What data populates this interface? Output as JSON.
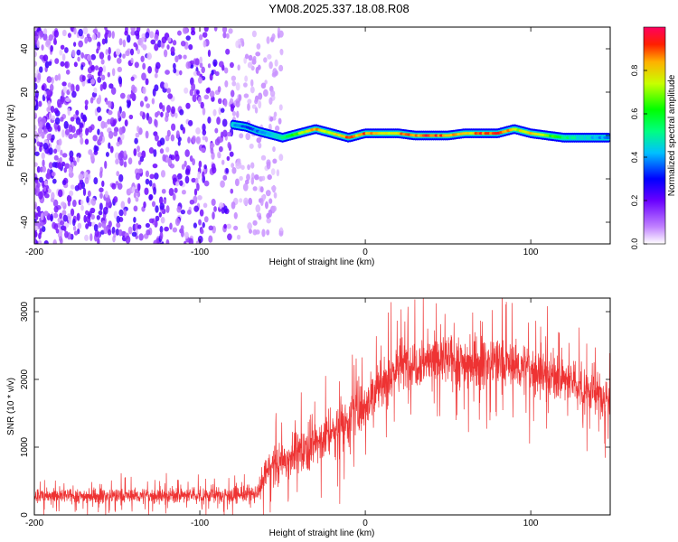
{
  "title": "YM08.2025.337.18.08.R08",
  "chart_data": [
    {
      "type": "heatmap",
      "xlabel": "Height of straight line (km)",
      "ylabel": "Frequency (Hz)",
      "xlim": [
        -200,
        148
      ],
      "ylim": [
        -50,
        50
      ],
      "xticks": [
        -200,
        -100,
        0,
        100
      ],
      "yticks": [
        -40,
        -20,
        0,
        20,
        40
      ],
      "colorbar": {
        "label": "Normalized spectral amplitude",
        "range": [
          0,
          1
        ],
        "ticks": [
          0.0,
          0.2,
          0.4,
          0.6,
          0.8
        ]
      },
      "noise_region": {
        "x_range": [
          -200,
          -50
        ],
        "freq_range": [
          -50,
          50
        ],
        "amplitude": [
          0.0,
          0.25
        ]
      },
      "signal_track": {
        "x": [
          -80,
          -72,
          -65,
          -60,
          -55,
          -50,
          -45,
          -40,
          -35,
          -30,
          -25,
          -20,
          -15,
          -10,
          -5,
          0,
          10,
          20,
          30,
          40,
          50,
          60,
          70,
          80,
          85,
          90,
          95,
          100,
          110,
          120,
          130,
          140,
          148
        ],
        "freq": [
          5,
          4,
          2,
          1,
          0,
          -1,
          0,
          1,
          2,
          3,
          2,
          1,
          0,
          -1,
          0,
          1,
          1,
          1,
          0,
          0,
          0,
          1,
          1,
          1,
          2,
          3,
          2,
          1,
          0,
          -1,
          -1,
          -1,
          -1
        ],
        "amplitude": [
          0.45,
          0.35,
          0.4,
          0.45,
          0.5,
          0.55,
          0.6,
          0.75,
          0.85,
          0.95,
          0.8,
          0.85,
          0.9,
          0.95,
          0.9,
          0.95,
          0.8,
          0.9,
          0.95,
          1.0,
          0.9,
          0.85,
          0.95,
          1.0,
          0.95,
          0.75,
          0.85,
          0.9,
          0.7,
          0.6,
          0.5,
          0.45,
          0.4
        ]
      }
    },
    {
      "type": "line",
      "xlabel": "Height of straight line (km)",
      "ylabel": "SNR (10 * v/v)",
      "xlim": [
        -200,
        148
      ],
      "ylim": [
        0,
        3200
      ],
      "xticks": [
        -200,
        -100,
        0,
        100
      ],
      "yticks": [
        0,
        1000,
        2000,
        3000
      ],
      "series": [
        {
          "name": "SNR",
          "color": "#ee3333",
          "envelope_x": [
            -200,
            -150,
            -100,
            -65,
            -60,
            -40,
            -20,
            0,
            20,
            40,
            60,
            80,
            100,
            120,
            148
          ],
          "envelope_mean": [
            280,
            280,
            290,
            300,
            650,
            950,
            1200,
            1650,
            2200,
            2300,
            2250,
            2250,
            2150,
            2000,
            1700
          ],
          "envelope_spread": [
            150,
            150,
            160,
            170,
            350,
            450,
            500,
            550,
            550,
            550,
            550,
            500,
            500,
            450,
            450
          ]
        }
      ]
    }
  ],
  "colors": {
    "line": "#ee3333",
    "noise": "#7b1fe6"
  }
}
